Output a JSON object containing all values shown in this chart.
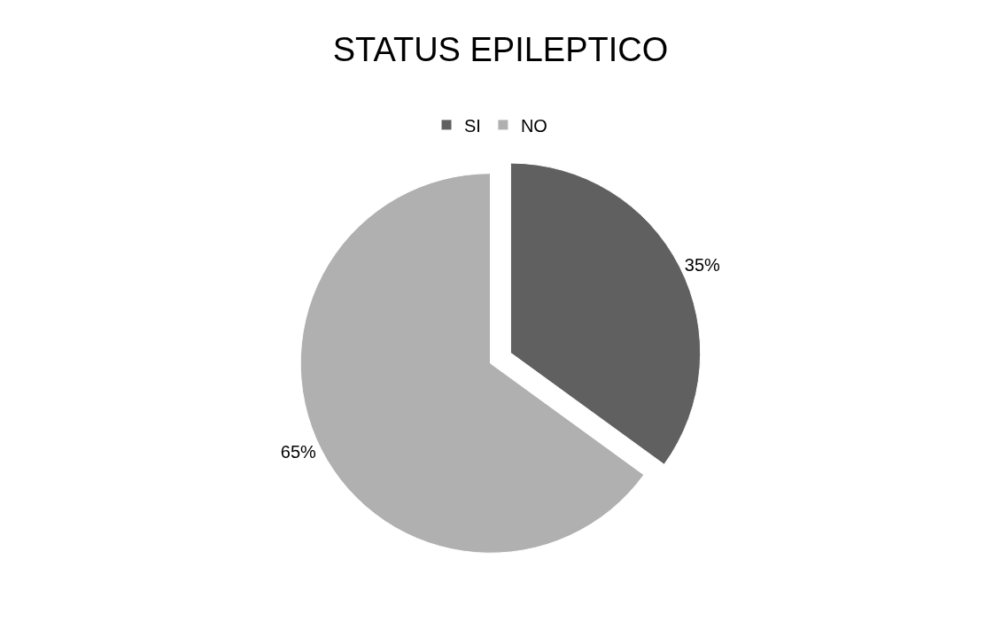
{
  "chart_data": {
    "type": "pie",
    "title": "STATUS EPILEPTICO",
    "categories": [
      "SI",
      "NO"
    ],
    "values": [
      35,
      65
    ],
    "value_labels": [
      "35%",
      "65%"
    ],
    "colors": [
      "#606060",
      "#b0b0b0"
    ],
    "legend": "top"
  }
}
